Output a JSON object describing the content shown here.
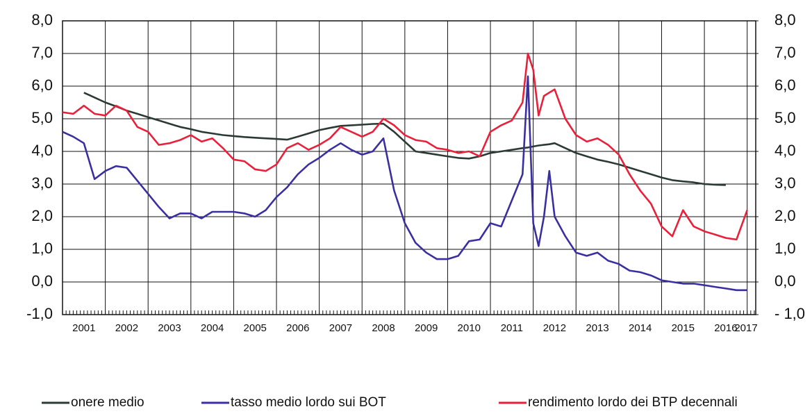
{
  "chart_data": {
    "type": "line",
    "x": [
      2001.0,
      2001.25,
      2001.5,
      2001.75,
      2002.0,
      2002.25,
      2002.5,
      2002.75,
      2003.0,
      2003.25,
      2003.5,
      2003.75,
      2004.0,
      2004.25,
      2004.5,
      2004.75,
      2005.0,
      2005.25,
      2005.5,
      2005.75,
      2006.0,
      2006.25,
      2006.5,
      2006.75,
      2007.0,
      2007.25,
      2007.5,
      2007.75,
      2008.0,
      2008.25,
      2008.5,
      2008.75,
      2009.0,
      2009.25,
      2009.5,
      2009.75,
      2010.0,
      2010.25,
      2010.5,
      2010.75,
      2011.0,
      2011.25,
      2011.5,
      2011.75,
      2011.875,
      2012.0,
      2012.125,
      2012.25,
      2012.375,
      2012.5,
      2012.75,
      2013.0,
      2013.25,
      2013.5,
      2013.75,
      2014.0,
      2014.25,
      2014.5,
      2014.75,
      2015.0,
      2015.25,
      2015.5,
      2015.75,
      2016.0,
      2016.25,
      2016.5,
      2016.75,
      2017.0
    ],
    "series": [
      {
        "name": "onere medio",
        "color": "#2b3a35",
        "values": [
          null,
          null,
          5.8,
          5.65,
          5.5,
          5.38,
          5.25,
          5.15,
          5.05,
          4.95,
          4.85,
          4.75,
          4.68,
          4.6,
          4.55,
          4.5,
          4.47,
          4.44,
          4.42,
          4.4,
          4.38,
          4.36,
          4.45,
          4.55,
          4.65,
          4.72,
          4.78,
          4.8,
          4.82,
          4.84,
          4.85,
          4.6,
          4.3,
          4.0,
          3.95,
          3.9,
          3.85,
          3.8,
          3.78,
          3.85,
          3.95,
          4.0,
          4.05,
          4.1,
          4.12,
          4.15,
          4.18,
          4.2,
          4.22,
          4.25,
          4.1,
          3.95,
          3.85,
          3.75,
          3.68,
          3.6,
          3.5,
          3.4,
          3.3,
          3.2,
          3.12,
          3.08,
          3.05,
          3.0,
          2.98,
          2.97,
          null,
          null
        ]
      },
      {
        "name": "tasso medio lordo sui BOT",
        "color": "#3a2fa0",
        "values": [
          4.6,
          4.45,
          4.25,
          3.15,
          3.4,
          3.55,
          3.5,
          3.1,
          2.7,
          2.3,
          1.95,
          2.1,
          2.1,
          1.95,
          2.15,
          2.15,
          2.15,
          2.1,
          2.0,
          2.2,
          2.6,
          2.9,
          3.3,
          3.6,
          3.8,
          4.05,
          4.25,
          4.05,
          3.9,
          4.0,
          4.4,
          2.8,
          1.8,
          1.2,
          0.9,
          0.7,
          0.7,
          0.8,
          1.25,
          1.3,
          1.8,
          1.7,
          2.5,
          3.3,
          6.3,
          1.8,
          1.1,
          2.0,
          3.4,
          2.0,
          1.4,
          0.9,
          0.8,
          0.9,
          0.65,
          0.55,
          0.35,
          0.3,
          0.2,
          0.05,
          0.0,
          -0.05,
          -0.05,
          -0.1,
          -0.15,
          -0.2,
          -0.25,
          -0.25
        ]
      },
      {
        "name": "rendimento lordo dei BTP decennali",
        "color": "#e8203a",
        "values": [
          5.2,
          5.15,
          5.4,
          5.15,
          5.1,
          5.4,
          5.25,
          4.75,
          4.6,
          4.2,
          4.25,
          4.35,
          4.5,
          4.3,
          4.4,
          4.1,
          3.75,
          3.7,
          3.45,
          3.4,
          3.6,
          4.1,
          4.25,
          4.05,
          4.2,
          4.4,
          4.75,
          4.6,
          4.45,
          4.6,
          5.0,
          4.8,
          4.5,
          4.35,
          4.3,
          4.1,
          4.05,
          3.95,
          4.0,
          3.85,
          4.6,
          4.8,
          4.95,
          5.5,
          7.0,
          6.5,
          5.1,
          5.7,
          5.8,
          5.9,
          5.0,
          4.5,
          4.3,
          4.4,
          4.2,
          3.9,
          3.3,
          2.8,
          2.4,
          1.7,
          1.4,
          2.2,
          1.7,
          1.55,
          1.45,
          1.35,
          1.3,
          2.2
        ]
      }
    ],
    "xlim": [
      2001,
      2017.2
    ],
    "xticks": [
      2001,
      2002,
      2003,
      2004,
      2005,
      2006,
      2007,
      2008,
      2009,
      2010,
      2011,
      2012,
      2013,
      2014,
      2015,
      2016,
      2017
    ],
    "ylim": [
      -1,
      8
    ],
    "yticks": [
      {
        "value": -1,
        "label": "-1,0"
      },
      {
        "value": 0,
        "label": "0,0"
      },
      {
        "value": 1,
        "label": "1,0"
      },
      {
        "value": 2,
        "label": "2,0"
      },
      {
        "value": 3,
        "label": "3,0"
      },
      {
        "value": 4,
        "label": "4,0"
      },
      {
        "value": 5,
        "label": "5,0"
      },
      {
        "value": 6,
        "label": "6,0"
      },
      {
        "value": 7,
        "label": "7,0"
      },
      {
        "value": 8,
        "label": "8,0"
      }
    ],
    "y2lim": [
      -1,
      8
    ],
    "y2ticks": [
      {
        "value": -1,
        "label": "- 1,0"
      },
      {
        "value": 0,
        "label": "0,0"
      },
      {
        "value": 1,
        "label": "1,0"
      },
      {
        "value": 2,
        "label": "2,0"
      },
      {
        "value": 3,
        "label": "3,0"
      },
      {
        "value": 4,
        "label": "4,0"
      },
      {
        "value": 5,
        "label": "5,0"
      },
      {
        "value": 6,
        "label": "6,0"
      },
      {
        "value": 7,
        "label": "7,0"
      },
      {
        "value": 8,
        "label": "8,0"
      }
    ],
    "grid": true,
    "legend": "bottom"
  }
}
